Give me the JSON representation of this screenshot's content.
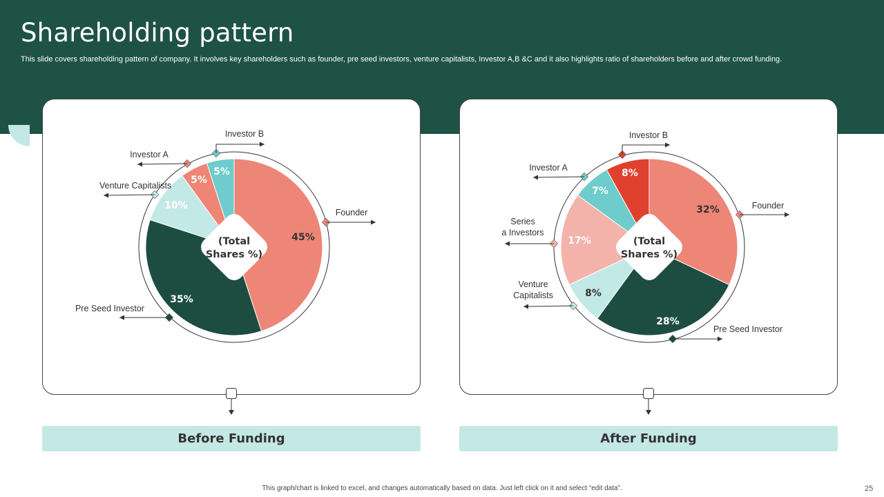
{
  "slide": {
    "title": "Shareholding pattern",
    "subtitle": "This slide covers shareholding pattern of company. It involves key shareholders such as founder, pre seed investors, venture capitalists, Investor A,B &C and it also highlights ratio of shareholders before and after crowd funding.",
    "footer_note": "This graph/chart is linked to excel, and changes automatically based on data. Just left click on it and select “edit data”.",
    "page_number": "25"
  },
  "chart_data": [
    {
      "type": "pie",
      "caption": "Before Funding",
      "center_label": [
        "(Total",
        "Shares %)"
      ],
      "unit": "%",
      "slices": [
        {
          "name": "Founder",
          "value": 45,
          "color": "#ed8677",
          "label_color": "#333333"
        },
        {
          "name": "Pre Seed Investor",
          "value": 35,
          "color": "#1d4d40",
          "label_color": "#ffffff"
        },
        {
          "name": "Venture Capitalists",
          "value": 10,
          "color": "#c3e9e6",
          "label_color": "#ffffff"
        },
        {
          "name": "Investor  A",
          "value": 5,
          "color": "#ef8575",
          "label_color": "#ffffff"
        },
        {
          "name": "Investor  B",
          "value": 5,
          "color": "#6ecccc",
          "label_color": "#ffffff"
        }
      ]
    },
    {
      "type": "pie",
      "caption": "After Funding",
      "center_label": [
        "(Total",
        "Shares %)"
      ],
      "unit": "%",
      "slices": [
        {
          "name": "Founder",
          "value": 32,
          "color": "#ed8677",
          "label_color": "#333333"
        },
        {
          "name": "Pre Seed Investor",
          "value": 28,
          "color": "#1d4d40",
          "label_color": "#ffffff"
        },
        {
          "name": "Venture Capitalists",
          "value": 8,
          "color": "#c3e9e6",
          "label_color": "#333333"
        },
        {
          "name": "Series a Investors",
          "value": 17,
          "color": "#f4b3aa",
          "label_color": "#ffffff"
        },
        {
          "name": "Investor  A",
          "value": 7,
          "color": "#6ecccc",
          "label_color": "#ffffff"
        },
        {
          "name": "Investor  B",
          "value": 8,
          "color": "#e0412e",
          "label_color": "#ffffff"
        }
      ]
    }
  ],
  "annotations": {
    "before": [
      {
        "text": "Investor  B",
        "marker_color": "#6ecccc",
        "arrow": "right"
      },
      {
        "text": "Investor  A",
        "marker_color": "#ef8575",
        "arrow": "left"
      },
      {
        "text": "Venture Capitalists",
        "marker_color": "#c3e9e6",
        "arrow": "left"
      },
      {
        "text": "Founder",
        "marker_color": "#ed8677",
        "arrow": "right"
      },
      {
        "text": "Pre Seed Investor",
        "marker_color": "#1d4d40",
        "arrow": "left"
      }
    ],
    "after": [
      {
        "text": "Investor  B",
        "marker_color": "#e0412e",
        "arrow": "right"
      },
      {
        "text": "Investor  A",
        "marker_color": "#6ecccc",
        "arrow": "left"
      },
      {
        "text": "Founder",
        "marker_color": "#ed8677",
        "arrow": "right"
      },
      {
        "text": "Series",
        "text2": "a Investors",
        "marker_color": "#f4b3aa",
        "arrow": "left"
      },
      {
        "text": "Venture",
        "text2": "Capitalists",
        "marker_color": "#c3e9e6",
        "arrow": "left"
      },
      {
        "text": "Pre Seed Investor",
        "marker_color": "#1d4d40",
        "arrow": "right"
      }
    ]
  }
}
